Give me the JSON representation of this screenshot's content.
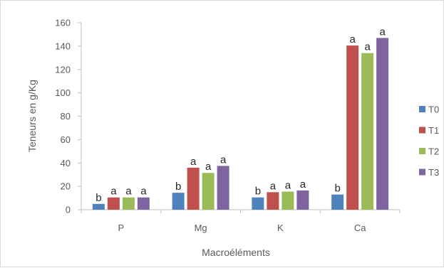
{
  "chart_data": {
    "type": "bar",
    "categories": [
      "P",
      "Mg",
      "K",
      "Ca"
    ],
    "series": [
      {
        "name": "T0",
        "color": "#4F81BD",
        "values": [
          5,
          14.5,
          10.5,
          13
        ],
        "letters": [
          "b",
          "b",
          "b",
          "b"
        ]
      },
      {
        "name": "T1",
        "color": "#C0504D",
        "values": [
          10.5,
          36,
          15,
          140.5
        ],
        "letters": [
          "a",
          "a",
          "a",
          "a"
        ]
      },
      {
        "name": "T2",
        "color": "#9BBB59",
        "values": [
          10.5,
          31.5,
          15.5,
          134
        ],
        "letters": [
          "a",
          "a",
          "a",
          "a"
        ]
      },
      {
        "name": "T3",
        "color": "#8064A2",
        "values": [
          10.5,
          37.5,
          16.5,
          147
        ],
        "letters": [
          "a",
          "a",
          "a",
          "a"
        ]
      }
    ],
    "xlabel": "Macroéléments",
    "ylabel": "Teneurs  en g/Kg",
    "ylim": [
      0,
      160
    ],
    "yticks": [
      "0",
      "20",
      "40",
      "60",
      "80",
      "100",
      "120",
      "140",
      "160"
    ],
    "grid": false,
    "legend_position": "right"
  }
}
